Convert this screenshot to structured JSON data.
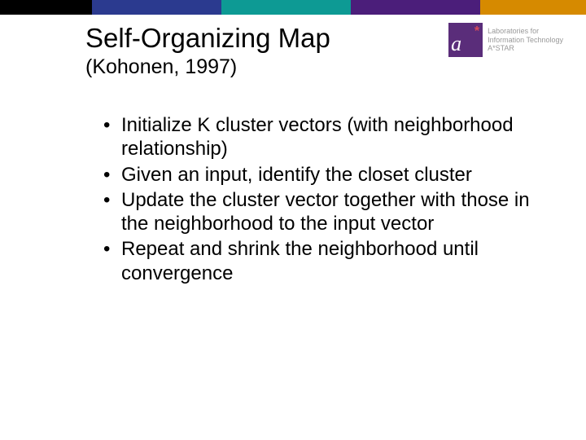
{
  "topbar": {
    "segments": [
      {
        "color": "#000000",
        "width": 113
      },
      {
        "color": "#2b3a8f",
        "width": 159
      },
      {
        "color": "#0d9a94",
        "width": 159
      },
      {
        "color": "#4b1e7a",
        "width": 159
      },
      {
        "color": "#d68a00",
        "width": 130
      }
    ]
  },
  "header": {
    "title": "Self-Organizing Map",
    "subtitle": "(Kohonen, 1997)"
  },
  "logo": {
    "letter": "a",
    "star": "*",
    "line1": "Laboratories for",
    "line2": "Information Technology",
    "sub": "A*STAR"
  },
  "bullets": [
    "Initialize K cluster vectors (with neighborhood relationship)",
    "Given an input, identify the closet cluster",
    "Update the cluster vector together with those in the neighborhood to the input vector",
    "Repeat and shrink the neighborhood until convergence"
  ]
}
